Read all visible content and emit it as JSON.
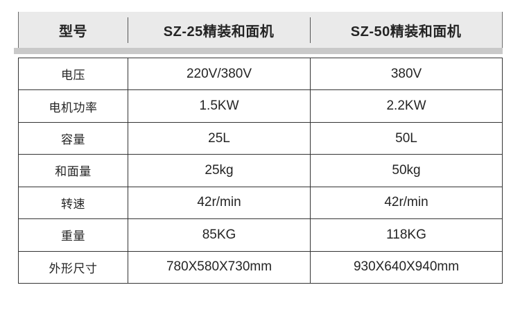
{
  "table": {
    "header": {
      "model_label": "型号",
      "col1": "SZ-25精装和面机",
      "col2": "SZ-50精装和面机"
    },
    "rows": [
      {
        "label": "电压",
        "v1": "220V/380V",
        "v2": "380V"
      },
      {
        "label": "电机功率",
        "v1": "1.5KW",
        "v2": "2.2KW"
      },
      {
        "label": "容量",
        "v1": "25L",
        "v2": "50L"
      },
      {
        "label": "和面量",
        "v1": "25kg",
        "v2": "50kg"
      },
      {
        "label": "转速",
        "v1": "42r/min",
        "v2": "42r/min"
      },
      {
        "label": "重量",
        "v1": "85KG",
        "v2": "118KG"
      },
      {
        "label": "外形尺寸",
        "v1": "780X580X730mm",
        "v2": "930X640X940mm"
      }
    ],
    "colors": {
      "header_bg": "#eaeaea",
      "separator_band": "#c9c9c9",
      "border": "#333333",
      "text": "#242424",
      "page_bg": "#ffffff"
    }
  }
}
